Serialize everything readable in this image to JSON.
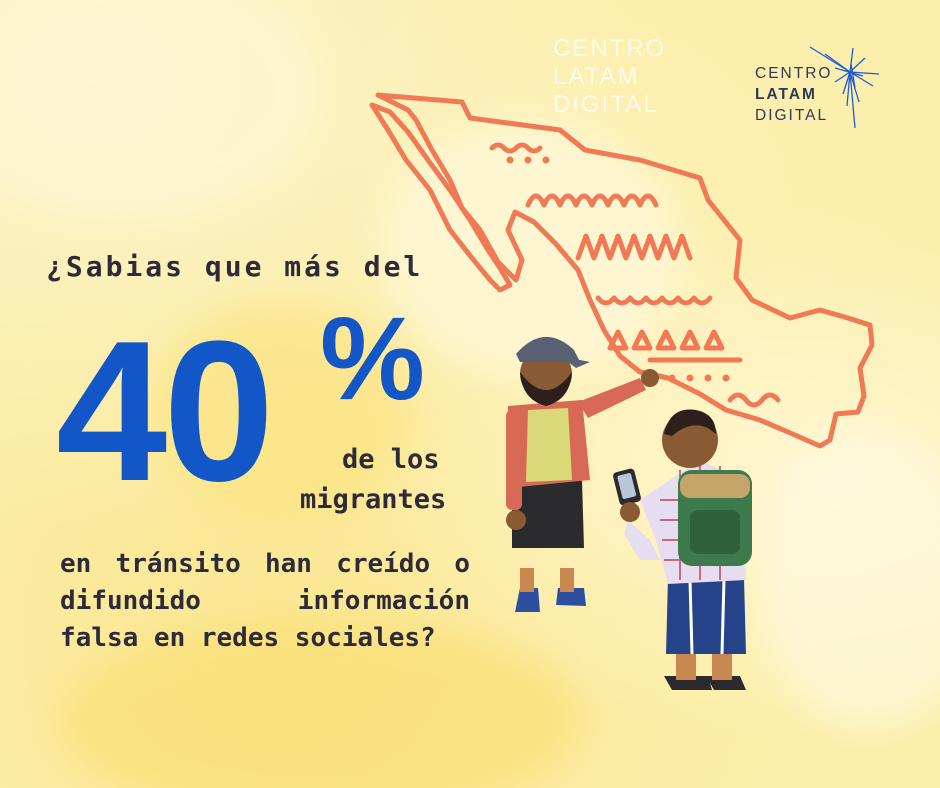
{
  "question_line_1": "¿Sabias que más del",
  "big_number": "40",
  "percent": "%",
  "sub_line_1": "de los",
  "sub_line_2": "migrantes",
  "paragraph": [
    "en tránsito  han creído o",
    "difundido   información",
    "falsa en redes sociales?"
  ],
  "logo": {
    "line_1": "CENTRO",
    "line_2": "LATAM",
    "line_3": "DIGITAL"
  },
  "colors": {
    "background": "#fbeeaa",
    "accent_blue": "#1256c8",
    "text_dark": "#2d2a3a",
    "map_orange": "#ef7a55",
    "logo_navy": "#2d3a57"
  },
  "icons": [
    "mexico-map-illustration",
    "pointing-migrant-illustration",
    "backpacker-with-phone-illustration",
    "starburst-logo-icon"
  ]
}
